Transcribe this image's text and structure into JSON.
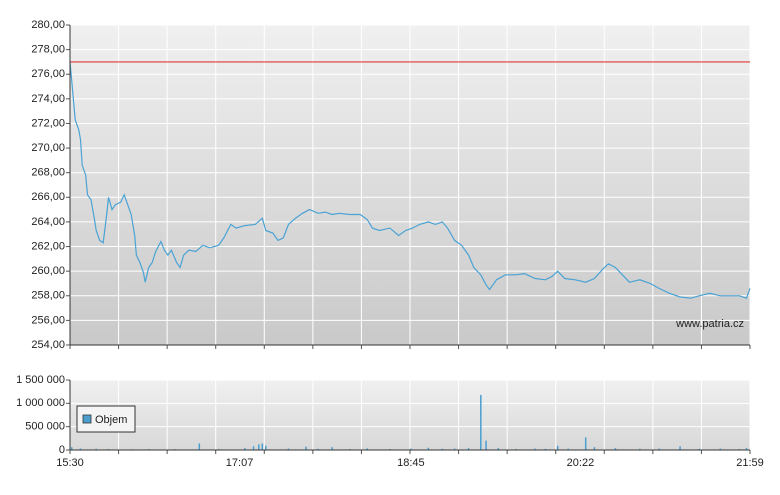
{
  "chart_data": [
    {
      "type": "line",
      "color": "#4aa3d4",
      "watermark": "www.patria.cz",
      "reference_value": 277,
      "reference_color": "#e03a3a",
      "xlim": [
        "15:30",
        "21:59"
      ],
      "ylim": [
        254,
        280
      ],
      "yticks": [
        {
          "value": 254,
          "label": "254,00"
        },
        {
          "value": 256,
          "label": "256,00"
        },
        {
          "value": 258,
          "label": "258,00"
        },
        {
          "value": 260,
          "label": "260,00"
        },
        {
          "value": 262,
          "label": "262,00"
        },
        {
          "value": 264,
          "label": "264,00"
        },
        {
          "value": 266,
          "label": "266,00"
        },
        {
          "value": 268,
          "label": "268,00"
        },
        {
          "value": 270,
          "label": "270,00"
        },
        {
          "value": 272,
          "label": "272,00"
        },
        {
          "value": 274,
          "label": "274,00"
        },
        {
          "value": 276,
          "label": "276,00"
        },
        {
          "value": 278,
          "label": "278,00"
        },
        {
          "value": 280,
          "label": "280,00"
        }
      ],
      "grid": true,
      "x": [
        "15:30",
        "15:31",
        "15:33",
        "15:35",
        "15:36",
        "15:37",
        "15:39",
        "15:40",
        "15:42",
        "15:44",
        "15:45",
        "15:47",
        "15:49",
        "15:51",
        "15:52",
        "15:54",
        "15:56",
        "15:59",
        "16:01",
        "16:03",
        "16:05",
        "16:07",
        "16:08",
        "16:10",
        "16:12",
        "16:13",
        "16:15",
        "16:17",
        "16:19",
        "16:22",
        "16:24",
        "16:26",
        "16:28",
        "16:31",
        "16:33",
        "16:35",
        "16:38",
        "16:42",
        "16:46",
        "16:50",
        "16:55",
        "16:58",
        "17:02",
        "17:05",
        "17:10",
        "17:16",
        "17:20",
        "17:22",
        "17:26",
        "17:29",
        "17:32",
        "17:35",
        "17:39",
        "17:43",
        "17:47",
        "17:52",
        "17:56",
        "18:00",
        "18:04",
        "18:10",
        "18:16",
        "18:20",
        "18:23",
        "18:27",
        "18:33",
        "18:38",
        "18:42",
        "18:46",
        "18:50",
        "18:55",
        "18:59",
        "19:03",
        "19:06",
        "19:10",
        "19:14",
        "19:18",
        "19:21",
        "19:25",
        "19:28",
        "19:30",
        "19:34",
        "19:39",
        "19:45",
        "19:50",
        "19:56",
        "20:02",
        "20:06",
        "20:09",
        "20:13",
        "20:19",
        "20:25",
        "20:30",
        "20:35",
        "20:38",
        "20:42",
        "20:46",
        "20:50",
        "20:56",
        "21:02",
        "21:07",
        "21:13",
        "21:19",
        "21:25",
        "21:30",
        "21:36",
        "21:42",
        "21:47",
        "21:53",
        "21:57",
        "21:59"
      ],
      "values": [
        277.0,
        275.5,
        272.3,
        271.5,
        270.7,
        268.6,
        267.8,
        266.2,
        265.8,
        264.2,
        263.3,
        262.5,
        262.3,
        264.6,
        266.0,
        265.0,
        265.4,
        265.6,
        266.2,
        265.4,
        264.6,
        262.9,
        261.3,
        260.7,
        259.9,
        259.1,
        260.3,
        260.7,
        261.6,
        262.4,
        261.7,
        261.3,
        261.7,
        260.7,
        260.3,
        261.3,
        261.7,
        261.6,
        262.1,
        261.9,
        262.1,
        262.7,
        263.8,
        263.5,
        263.7,
        263.8,
        264.3,
        263.3,
        263.1,
        262.5,
        262.7,
        263.8,
        264.3,
        264.7,
        265.0,
        264.7,
        264.8,
        264.6,
        264.7,
        264.6,
        264.6,
        264.2,
        263.5,
        263.3,
        263.5,
        262.9,
        263.3,
        263.5,
        263.8,
        264.0,
        263.8,
        264.0,
        263.5,
        262.5,
        262.1,
        261.3,
        260.3,
        259.7,
        258.9,
        258.5,
        259.3,
        259.7,
        259.7,
        259.8,
        259.4,
        259.3,
        259.6,
        260.0,
        259.4,
        259.3,
        259.1,
        259.4,
        260.2,
        260.6,
        260.3,
        259.7,
        259.1,
        259.3,
        259.0,
        258.6,
        258.2,
        257.9,
        257.8,
        258.0,
        258.2,
        258.0,
        258.0,
        258.0,
        257.8,
        258.6
      ]
    },
    {
      "type": "bar",
      "xlim": [
        "15:30",
        "21:59"
      ],
      "xticks": [
        "15:30",
        "17:07",
        "18:45",
        "20:22",
        "21:59"
      ],
      "ylim": [
        0,
        1500000
      ],
      "yticks": [
        0,
        {
          "value": 500000,
          "label": "500 000"
        },
        {
          "value": 1000000,
          "label": "1 000 000"
        },
        {
          "value": 1500000,
          "label": "1 500 000"
        }
      ],
      "grid": true,
      "x": [
        "15:31",
        "15:36",
        "15:45",
        "15:52",
        "16:05",
        "16:15",
        "16:30",
        "16:44",
        "16:55",
        "17:10",
        "17:15",
        "17:18",
        "17:20",
        "17:22",
        "17:35",
        "17:45",
        "17:52",
        "18:00",
        "18:10",
        "18:20",
        "18:33",
        "18:45",
        "18:55",
        "19:03",
        "19:10",
        "19:18",
        "19:25",
        "19:28",
        "19:35",
        "19:45",
        "19:56",
        "20:02",
        "20:09",
        "20:15",
        "20:25",
        "20:30",
        "20:42",
        "20:56",
        "21:07",
        "21:19",
        "21:30",
        "21:42",
        "21:53",
        "21:57"
      ],
      "series": [
        {
          "name": "Objem",
          "color": "#4a9fd0",
          "values": [
            60000,
            30000,
            25000,
            20000,
            15000,
            20000,
            18000,
            140000,
            20000,
            40000,
            80000,
            120000,
            140000,
            90000,
            30000,
            70000,
            25000,
            60000,
            20000,
            35000,
            20000,
            30000,
            50000,
            25000,
            30000,
            40000,
            1180000,
            200000,
            40000,
            20000,
            30000,
            25000,
            90000,
            30000,
            270000,
            60000,
            40000,
            25000,
            30000,
            80000,
            25000,
            30000,
            20000,
            40000
          ]
        }
      ]
    }
  ]
}
